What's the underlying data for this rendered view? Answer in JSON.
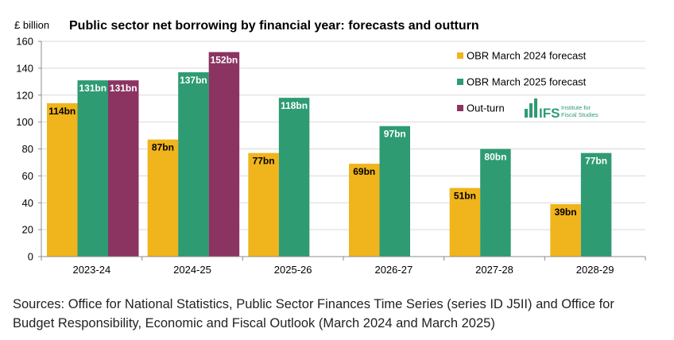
{
  "chart_data": {
    "type": "bar",
    "title": "Public sector net borrowing by financial year: forecasts and outturn",
    "ylabel": "£ billion",
    "xlabel": "",
    "ylim": [
      0,
      160
    ],
    "yticks": [
      0,
      20,
      40,
      60,
      80,
      100,
      120,
      140,
      160
    ],
    "grid": true,
    "legend_position": "top-right",
    "categories": [
      "2023-24",
      "2024-25",
      "2025-26",
      "2026-27",
      "2027-28",
      "2028-29"
    ],
    "series": [
      {
        "name": "OBR March 2024 forecast",
        "color": "#f0b41c",
        "values": [
          114,
          87,
          77,
          69,
          51,
          39
        ],
        "labels": [
          "114bn",
          "87bn",
          "77bn",
          "69bn",
          "51bn",
          "39bn"
        ]
      },
      {
        "name": "OBR March 2025 forecast",
        "color": "#2e9b73",
        "values": [
          131,
          137,
          118,
          97,
          80,
          77
        ],
        "labels": [
          "131bn",
          "137bn",
          "118bn",
          "97bn",
          "80bn",
          "77bn"
        ]
      },
      {
        "name": "Out-turn",
        "color": "#8b3462",
        "values": [
          131,
          152,
          null,
          null,
          null,
          null
        ],
        "labels": [
          "131bn",
          "152bn",
          null,
          null,
          null,
          null
        ]
      }
    ]
  },
  "logo": {
    "mark": "IFS",
    "line1": "Institute for",
    "line2": "Fiscal Studies",
    "color": "#2e9b73"
  },
  "source": {
    "line1": "Sources: Office for National Statistics, Public Sector Finances Time Series (series ID J5II) and Office for",
    "line2": "Budget Responsibility, Economic and Fiscal Outlook (March 2024 and March 2025)"
  }
}
